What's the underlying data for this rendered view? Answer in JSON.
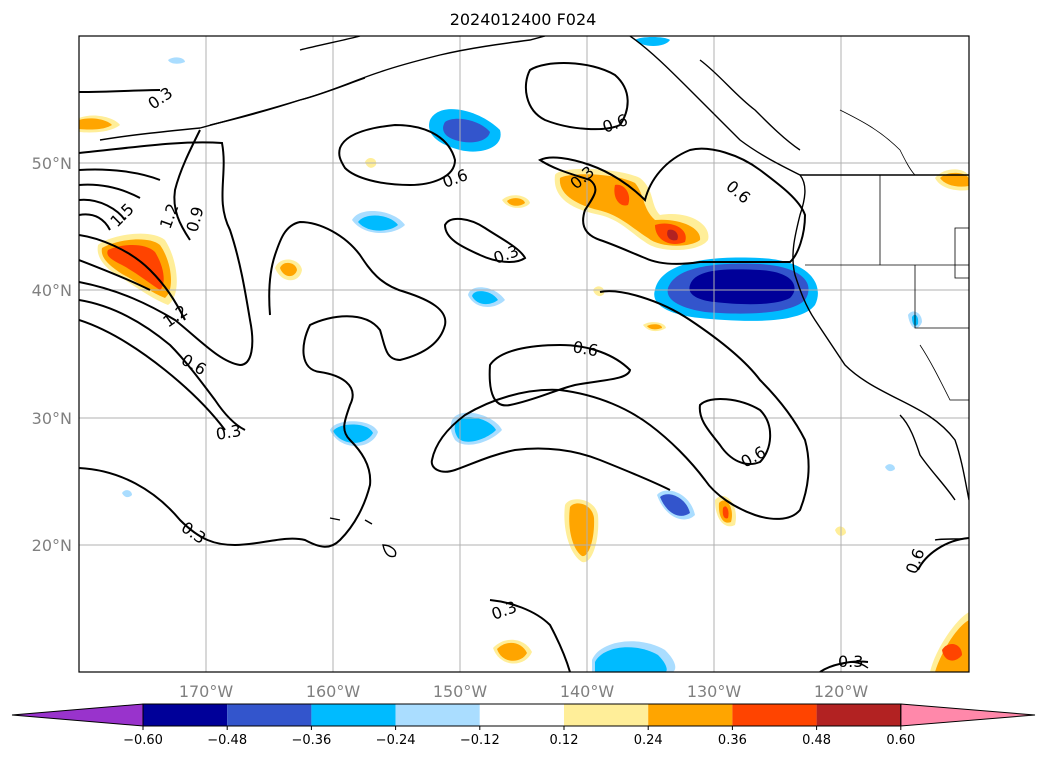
{
  "title": "2024012400 F024",
  "map": {
    "lon_labels": [
      "170°W",
      "160°W",
      "150°W",
      "140°W",
      "130°W",
      "120°W"
    ],
    "lat_labels": [
      "50°N",
      "40°N",
      "30°N",
      "20°N"
    ]
  },
  "colorbar": {
    "ticks": [
      "−0.60",
      "−0.48",
      "−0.36",
      "−0.24",
      "−0.12",
      "0.12",
      "0.24",
      "0.36",
      "0.48",
      "0.60"
    ],
    "colors": [
      "#9933cc",
      "#000099",
      "#3355cc",
      "#00bbff",
      "#aaddff",
      "#ffffff",
      "#ffee99",
      "#ffa500",
      "#ff4400",
      "#b22222",
      "#ff88aa"
    ]
  },
  "contour_labels": [
    "0.3",
    "0.6",
    "0.6",
    "0.3",
    "0.6",
    "0.6",
    "0.3",
    "1.5",
    "1.2",
    "0.9",
    "1.2",
    "0.6",
    "0.3",
    "0.6",
    "0.3",
    "0.6",
    "0.3",
    "0.3",
    "0.3"
  ]
}
